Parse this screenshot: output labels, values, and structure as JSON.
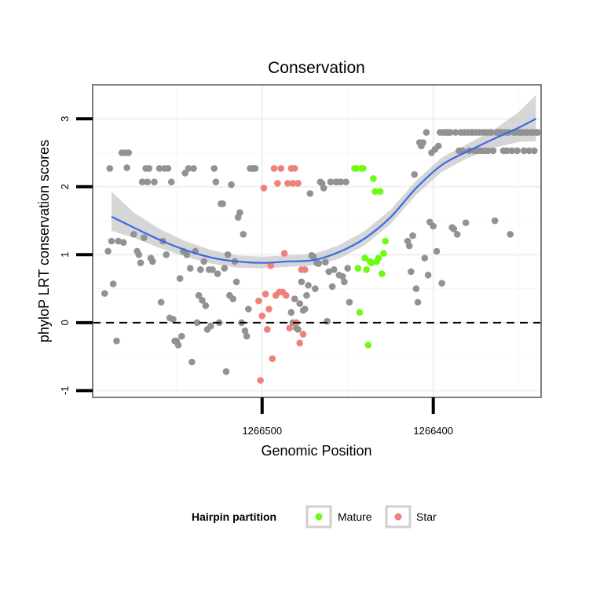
{
  "chart_data": {
    "type": "scatter",
    "title": "Conservation",
    "xlabel": "Genomic Position",
    "ylabel": "phyloP LRT conservation scores",
    "x_reversed": true,
    "xlim": [
      1266599,
      1266337
    ],
    "ylim": [
      -1.1,
      3.5
    ],
    "x_ticks": [
      1266500,
      1266400
    ],
    "x_tick_labels": [
      "1266500",
      "1266400"
    ],
    "y_ticks": [
      -1,
      0,
      1,
      2,
      3
    ],
    "y_tick_labels": [
      "-1",
      "0",
      "1",
      "2",
      "3"
    ],
    "hline": 0,
    "grid": true,
    "legend_position": "bottom",
    "legend_title": "Hairpin partition",
    "colors": {
      "other": "#929292",
      "Mature": "#6dfb12",
      "Star": "#f08078",
      "smooth": "#3b68e8",
      "ribbon": "#c8c8c8"
    },
    "series": [
      {
        "key": "other",
        "points": [
          [
            1266592,
            0.43
          ],
          [
            1266590,
            1.05
          ],
          [
            1266589,
            2.27
          ],
          [
            1266588,
            1.2
          ],
          [
            1266587,
            0.57
          ],
          [
            1266585,
            -0.27
          ],
          [
            1266584,
            1.2
          ],
          [
            1266582,
            2.5
          ],
          [
            1266581,
            1.18
          ],
          [
            1266580,
            2.5
          ],
          [
            1266579,
            2.28
          ],
          [
            1266578,
            2.5
          ],
          [
            1266575,
            1.3
          ],
          [
            1266573,
            1.05
          ],
          [
            1266572,
            1.0
          ],
          [
            1266571,
            0.88
          ],
          [
            1266570,
            2.07
          ],
          [
            1266569,
            1.25
          ],
          [
            1266568,
            2.27
          ],
          [
            1266567,
            2.07
          ],
          [
            1266566,
            2.27
          ],
          [
            1266565,
            0.95
          ],
          [
            1266564,
            0.9
          ],
          [
            1266563,
            2.07
          ],
          [
            1266560,
            2.27
          ],
          [
            1266559,
            0.3
          ],
          [
            1266558,
            1.2
          ],
          [
            1266557,
            2.27
          ],
          [
            1266556,
            1.0
          ],
          [
            1266555,
            2.27
          ],
          [
            1266554,
            0.07
          ],
          [
            1266553,
            2.07
          ],
          [
            1266552,
            0.05
          ],
          [
            1266551,
            -0.27
          ],
          [
            1266550,
            -0.27
          ],
          [
            1266549,
            -0.33
          ],
          [
            1266548,
            0.65
          ],
          [
            1266547,
            -0.2
          ],
          [
            1266546,
            1.05
          ],
          [
            1266545,
            2.2
          ],
          [
            1266544,
            1.0
          ],
          [
            1266543,
            2.27
          ],
          [
            1266542,
            0.8
          ],
          [
            1266541,
            -0.58
          ],
          [
            1266540,
            2.27
          ],
          [
            1266539,
            1.05
          ],
          [
            1266538,
            0.0
          ],
          [
            1266537,
            0.4
          ],
          [
            1266536,
            0.78
          ],
          [
            1266535,
            0.33
          ],
          [
            1266534,
            0.9
          ],
          [
            1266533,
            0.25
          ],
          [
            1266532,
            -0.1
          ],
          [
            1266531,
            0.78
          ],
          [
            1266530,
            -0.05
          ],
          [
            1266529,
            0.78
          ],
          [
            1266528,
            2.27
          ],
          [
            1266527,
            2.07
          ],
          [
            1266526,
            0.72
          ],
          [
            1266525,
            0.0
          ],
          [
            1266524,
            1.75
          ],
          [
            1266523,
            1.75
          ],
          [
            1266522,
            0.8
          ],
          [
            1266521,
            -0.72
          ],
          [
            1266520,
            1.0
          ],
          [
            1266519,
            0.4
          ],
          [
            1266518,
            2.03
          ],
          [
            1266517,
            0.35
          ],
          [
            1266516,
            0.9
          ],
          [
            1266515,
            0.6
          ],
          [
            1266514,
            1.55
          ],
          [
            1266513,
            1.62
          ],
          [
            1266512,
            0.0
          ],
          [
            1266511,
            1.3
          ],
          [
            1266510,
            -0.12
          ],
          [
            1266509,
            -0.2
          ],
          [
            1266508,
            0.2
          ],
          [
            1266507,
            2.27
          ],
          [
            1266506,
            2.27
          ],
          [
            1266505,
            2.27
          ],
          [
            1266504,
            2.27
          ],
          [
            1266483,
            0.15
          ],
          [
            1266482,
            0.0
          ],
          [
            1266481,
            0.35
          ],
          [
            1266480,
            -0.08
          ],
          [
            1266479,
            -0.1
          ],
          [
            1266478,
            0.28
          ],
          [
            1266477,
            0.6
          ],
          [
            1266476,
            0.18
          ],
          [
            1266475,
            0.2
          ],
          [
            1266474,
            0.4
          ],
          [
            1266473,
            0.55
          ],
          [
            1266472,
            1.9
          ],
          [
            1266471,
            0.99
          ],
          [
            1266470,
            0.97
          ],
          [
            1266469,
            0.5
          ],
          [
            1266468,
            0.88
          ],
          [
            1266467,
            0.87
          ],
          [
            1266466,
            2.07
          ],
          [
            1266465,
            2.05
          ],
          [
            1266464,
            1.98
          ],
          [
            1266463,
            0.89
          ],
          [
            1266462,
            0.02
          ],
          [
            1266461,
            0.75
          ],
          [
            1266460,
            2.07
          ],
          [
            1266459,
            0.53
          ],
          [
            1266458,
            0.78
          ],
          [
            1266457,
            2.07
          ],
          [
            1266456,
            2.07
          ],
          [
            1266455,
            0.7
          ],
          [
            1266454,
            2.07
          ],
          [
            1266453,
            0.68
          ],
          [
            1266452,
            0.6
          ],
          [
            1266451,
            2.07
          ],
          [
            1266450,
            0.8
          ],
          [
            1266449,
            0.3
          ],
          [
            1266415,
            1.2
          ],
          [
            1266414,
            1.13
          ],
          [
            1266413,
            0.75
          ],
          [
            1266412,
            1.28
          ],
          [
            1266411,
            2.18
          ],
          [
            1266410,
            0.5
          ],
          [
            1266409,
            0.3
          ],
          [
            1266408,
            2.65
          ],
          [
            1266407,
            2.6
          ],
          [
            1266406,
            2.65
          ],
          [
            1266405,
            0.95
          ],
          [
            1266404,
            2.8
          ],
          [
            1266403,
            0.7
          ],
          [
            1266402,
            1.48
          ],
          [
            1266401,
            2.5
          ],
          [
            1266400,
            1.42
          ],
          [
            1266399,
            2.55
          ],
          [
            1266398,
            1.05
          ],
          [
            1266397,
            2.6
          ],
          [
            1266396,
            2.8
          ],
          [
            1266395,
            0.58
          ],
          [
            1266394,
            2.8
          ],
          [
            1266393,
            2.8
          ],
          [
            1266392,
            2.8
          ],
          [
            1266391,
            2.8
          ],
          [
            1266390,
            2.8
          ],
          [
            1266389,
            1.4
          ],
          [
            1266388,
            1.38
          ],
          [
            1266387,
            2.8
          ],
          [
            1266386,
            1.3
          ],
          [
            1266385,
            2.53
          ],
          [
            1266384,
            2.8
          ],
          [
            1266383,
            2.53
          ],
          [
            1266382,
            2.8
          ],
          [
            1266381,
            1.47
          ],
          [
            1266380,
            2.8
          ],
          [
            1266379,
            2.53
          ],
          [
            1266378,
            2.8
          ],
          [
            1266377,
            2.8
          ],
          [
            1266376,
            2.53
          ],
          [
            1266375,
            2.8
          ],
          [
            1266374,
            2.53
          ],
          [
            1266373,
            2.8
          ],
          [
            1266372,
            2.53
          ],
          [
            1266371,
            2.8
          ],
          [
            1266370,
            2.53
          ],
          [
            1266369,
            2.8
          ],
          [
            1266368,
            2.53
          ],
          [
            1266367,
            2.8
          ],
          [
            1266366,
            2.8
          ],
          [
            1266365,
            2.53
          ],
          [
            1266364,
            1.5
          ],
          [
            1266363,
            2.8
          ],
          [
            1266362,
            2.8
          ],
          [
            1266361,
            2.8
          ],
          [
            1266360,
            2.8
          ],
          [
            1266359,
            2.53
          ],
          [
            1266358,
            2.8
          ],
          [
            1266357,
            2.53
          ],
          [
            1266356,
            2.8
          ],
          [
            1266355,
            1.3
          ],
          [
            1266354,
            2.53
          ],
          [
            1266353,
            2.8
          ],
          [
            1266352,
            2.8
          ],
          [
            1266351,
            2.53
          ],
          [
            1266350,
            2.8
          ],
          [
            1266349,
            2.8
          ],
          [
            1266348,
            2.8
          ],
          [
            1266347,
            2.53
          ],
          [
            1266346,
            2.8
          ],
          [
            1266345,
            2.8
          ],
          [
            1266344,
            2.53
          ],
          [
            1266343,
            2.8
          ],
          [
            1266342,
            2.8
          ],
          [
            1266341,
            2.53
          ],
          [
            1266340,
            2.8
          ],
          [
            1266339,
            2.8
          ]
        ]
      },
      {
        "key": "Mature",
        "name": "Mature",
        "points": [
          [
            1266446,
            2.27
          ],
          [
            1266445,
            2.27
          ],
          [
            1266444,
            0.8
          ],
          [
            1266443,
            0.15
          ],
          [
            1266442,
            2.27
          ],
          [
            1266441,
            2.27
          ],
          [
            1266440,
            0.95
          ],
          [
            1266439,
            0.78
          ],
          [
            1266438,
            -0.33
          ],
          [
            1266437,
            0.9
          ],
          [
            1266436,
            0.88
          ],
          [
            1266435,
            2.12
          ],
          [
            1266434,
            1.93
          ],
          [
            1266433,
            0.9
          ],
          [
            1266432,
            0.95
          ],
          [
            1266431,
            1.93
          ],
          [
            1266430,
            0.72
          ],
          [
            1266429,
            1.02
          ],
          [
            1266428,
            1.2
          ]
        ]
      },
      {
        "key": "Star",
        "name": "Star",
        "points": [
          [
            1266502,
            0.32
          ],
          [
            1266501,
            -0.85
          ],
          [
            1266500,
            0.1
          ],
          [
            1266499,
            1.98
          ],
          [
            1266498,
            0.42
          ],
          [
            1266497,
            -0.1
          ],
          [
            1266496,
            0.2
          ],
          [
            1266495,
            0.84
          ],
          [
            1266494,
            -0.53
          ],
          [
            1266493,
            2.27
          ],
          [
            1266492,
            0.4
          ],
          [
            1266491,
            2.05
          ],
          [
            1266490,
            0.45
          ],
          [
            1266489,
            2.27
          ],
          [
            1266488,
            0.45
          ],
          [
            1266487,
            1.02
          ],
          [
            1266486,
            0.4
          ],
          [
            1266485,
            2.05
          ],
          [
            1266484,
            -0.08
          ],
          [
            1266483,
            2.27
          ],
          [
            1266482,
            2.05
          ],
          [
            1266481,
            2.27
          ],
          [
            1266480,
            0.0
          ],
          [
            1266479,
            2.05
          ],
          [
            1266478,
            -0.3
          ],
          [
            1266477,
            0.78
          ],
          [
            1266476,
            -0.17
          ],
          [
            1266475,
            0.78
          ]
        ]
      }
    ],
    "smooth": [
      {
        "x": 1266588,
        "y": 1.56,
        "lo": 1.35,
        "hi": 1.93
      },
      {
        "x": 1266575,
        "y": 1.4,
        "lo": 1.25,
        "hi": 1.62
      },
      {
        "x": 1266560,
        "y": 1.22,
        "lo": 1.1,
        "hi": 1.38
      },
      {
        "x": 1266545,
        "y": 1.07,
        "lo": 0.97,
        "hi": 1.2
      },
      {
        "x": 1266530,
        "y": 0.96,
        "lo": 0.87,
        "hi": 1.07
      },
      {
        "x": 1266515,
        "y": 0.9,
        "lo": 0.81,
        "hi": 0.99
      },
      {
        "x": 1266500,
        "y": 0.88,
        "lo": 0.8,
        "hi": 0.97
      },
      {
        "x": 1266485,
        "y": 0.9,
        "lo": 0.82,
        "hi": 0.99
      },
      {
        "x": 1266470,
        "y": 0.92,
        "lo": 0.84,
        "hi": 1.01
      },
      {
        "x": 1266455,
        "y": 1.04,
        "lo": 0.94,
        "hi": 1.14
      },
      {
        "x": 1266440,
        "y": 1.24,
        "lo": 1.14,
        "hi": 1.35
      },
      {
        "x": 1266425,
        "y": 1.55,
        "lo": 1.45,
        "hi": 1.66
      },
      {
        "x": 1266410,
        "y": 1.98,
        "lo": 1.88,
        "hi": 2.09
      },
      {
        "x": 1266395,
        "y": 2.32,
        "lo": 2.22,
        "hi": 2.43
      },
      {
        "x": 1266380,
        "y": 2.52,
        "lo": 2.42,
        "hi": 2.63
      },
      {
        "x": 1266365,
        "y": 2.7,
        "lo": 2.57,
        "hi": 2.83
      },
      {
        "x": 1266350,
        "y": 2.87,
        "lo": 2.66,
        "hi": 3.1
      },
      {
        "x": 1266340,
        "y": 3.0,
        "lo": 2.67,
        "hi": 3.35
      }
    ]
  }
}
